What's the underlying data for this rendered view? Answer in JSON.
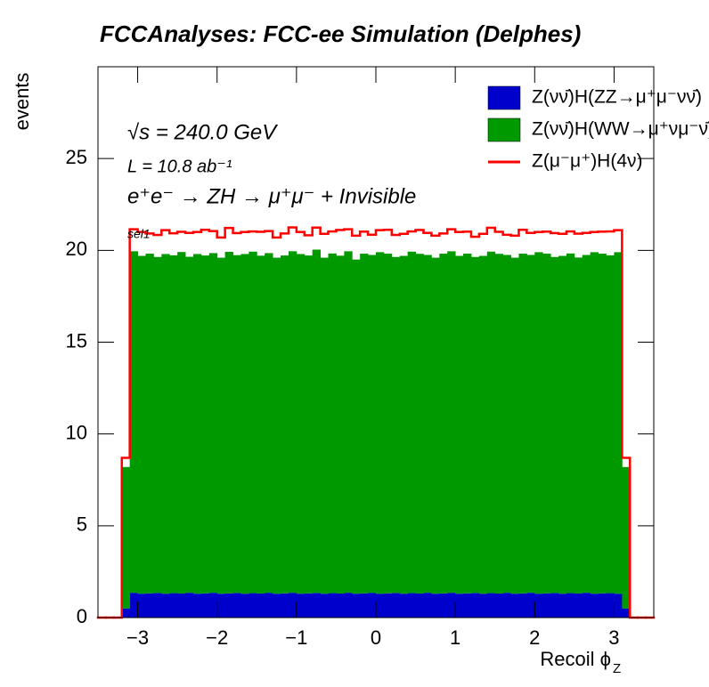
{
  "chart_data": {
    "type": "histogram",
    "title": "FCCAnalyses: FCC-ee Simulation (Delphes)",
    "y_label": "events",
    "x_label": "Recoil ϕ",
    "x_label_sub": "Z",
    "annotations": [
      "√s = 240.0 GeV",
      "L = 10.8 ab⁻¹",
      "e⁺e⁻ → ZH → μ⁺μ⁻ + Invisible",
      "sel1"
    ],
    "stacked": true,
    "xlim": [
      -3.5,
      3.5
    ],
    "ylim": [
      0,
      30
    ],
    "xticks": [
      -3,
      -2,
      -1,
      0,
      1,
      2,
      3
    ],
    "yticks": [
      0,
      5,
      10,
      15,
      20,
      25
    ],
    "bins": [
      -3.5,
      -3.4,
      -3.3,
      -3.2,
      -3.1,
      -3.0,
      -2.9,
      -2.8,
      -2.7,
      -2.6,
      -2.5,
      -2.4,
      -2.3,
      -2.2,
      -2.1,
      -2.0,
      -1.9,
      -1.8,
      -1.7,
      -1.6,
      -1.5,
      -1.4,
      -1.3,
      -1.2,
      -1.1,
      -1.0,
      -0.9,
      -0.8,
      -0.7,
      -0.6,
      -0.5,
      -0.4,
      -0.3,
      -0.2,
      -0.1,
      0.0,
      0.1,
      0.2,
      0.3,
      0.4,
      0.5,
      0.6,
      0.7,
      0.8,
      0.9,
      1.0,
      1.1,
      1.2,
      1.3,
      1.4,
      1.5,
      1.6,
      1.7,
      1.8,
      1.9,
      2.0,
      2.1,
      2.2,
      2.3,
      2.4,
      2.5,
      2.6,
      2.7,
      2.8,
      2.9,
      3.0,
      3.1,
      3.2,
      3.3,
      3.4,
      3.5
    ],
    "series": [
      {
        "name": "Z(νν̄)H(ZZ→μ⁺μ⁻νν̄)",
        "color": "#0000cc",
        "histtype": "fill",
        "values": [
          0,
          0,
          0,
          0.5,
          1.35,
          1.3,
          1.32,
          1.34,
          1.3,
          1.33,
          1.31,
          1.35,
          1.3,
          1.32,
          1.35,
          1.3,
          1.32,
          1.34,
          1.3,
          1.33,
          1.31,
          1.35,
          1.3,
          1.32,
          1.35,
          1.3,
          1.32,
          1.34,
          1.3,
          1.33,
          1.31,
          1.35,
          1.3,
          1.32,
          1.35,
          1.3,
          1.32,
          1.34,
          1.3,
          1.33,
          1.31,
          1.35,
          1.3,
          1.32,
          1.35,
          1.3,
          1.32,
          1.34,
          1.3,
          1.33,
          1.31,
          1.35,
          1.3,
          1.32,
          1.35,
          1.3,
          1.32,
          1.34,
          1.3,
          1.33,
          1.31,
          1.35,
          1.3,
          1.32,
          1.33,
          1.3,
          0.5,
          0,
          0,
          0
        ]
      },
      {
        "name": "Z(νν̄)H(WW→μ⁺νμ⁻ν̄)",
        "color": "#009900",
        "histtype": "fill",
        "values": [
          0,
          0,
          0,
          7.7,
          18.6,
          18.4,
          18.5,
          18.3,
          18.5,
          18.4,
          18.6,
          18.3,
          18.5,
          18.4,
          18.5,
          18.3,
          18.6,
          18.4,
          18.5,
          18.6,
          18.4,
          18.5,
          18.3,
          18.4,
          18.6,
          18.5,
          18.4,
          18.7,
          18.3,
          18.5,
          18.4,
          18.6,
          18.2,
          18.5,
          18.4,
          18.6,
          18.5,
          18.3,
          18.4,
          18.6,
          18.5,
          18.4,
          18.3,
          18.5,
          18.6,
          18.4,
          18.5,
          18.3,
          18.4,
          18.6,
          18.5,
          18.4,
          18.3,
          18.5,
          18.4,
          18.6,
          18.5,
          18.3,
          18.4,
          18.5,
          18.3,
          18.4,
          18.6,
          18.5,
          18.4,
          18.6,
          7.7,
          0,
          0,
          0
        ]
      },
      {
        "name": "Z(μ⁻μ⁺)H(4ν)",
        "color": "#ff0000",
        "histtype": "step",
        "values": [
          0,
          0,
          0,
          0.5,
          1.2,
          1.3,
          1.1,
          1.2,
          1.3,
          1.2,
          1.1,
          1.3,
          1.2,
          1.4,
          1.2,
          1.1,
          1.3,
          1.2,
          1.2,
          1.1,
          1.3,
          1.2,
          1.1,
          1.2,
          1.3,
          1.2,
          1.1,
          1.2,
          1.3,
          1.2,
          1.4,
          1.2,
          1.3,
          1.2,
          1.1,
          1.2,
          1.3,
          1.2,
          1.2,
          1.1,
          1.3,
          1.2,
          1.2,
          1.1,
          1.2,
          1.3,
          1.2,
          1.1,
          1.2,
          1.3,
          1.2,
          1.1,
          1.2,
          1.3,
          1.2,
          1.1,
          1.2,
          1.3,
          1.2,
          1.2,
          1.3,
          1.2,
          1.1,
          1.2,
          1.3,
          1.2,
          0.5,
          0,
          0,
          0
        ]
      }
    ]
  }
}
